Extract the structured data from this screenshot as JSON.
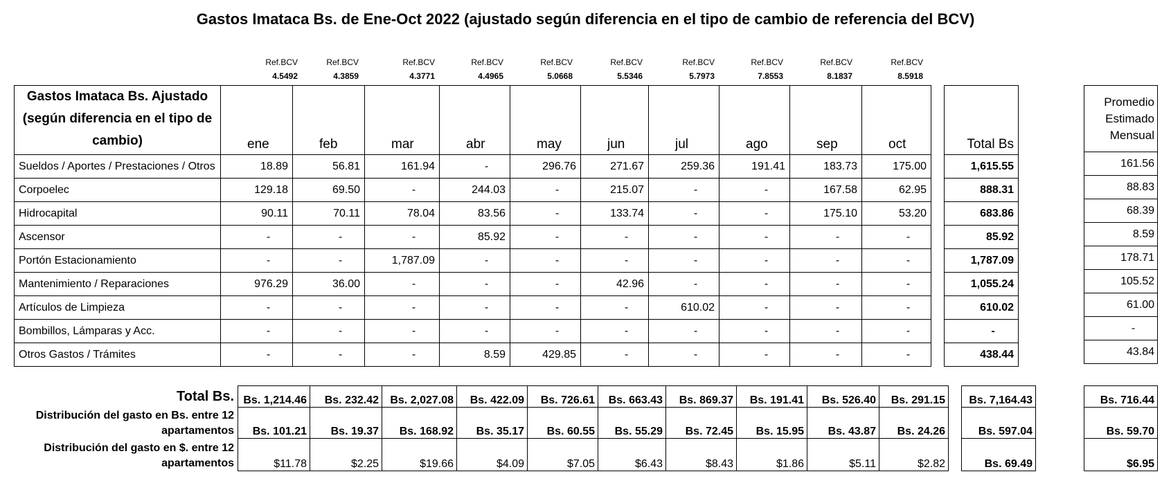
{
  "title": "Gastos Imataca Bs. de Ene-Oct 2022 (ajustado según diferencia en el tipo de cambio de referencia del BCV)",
  "ref_label": "Ref.BCV",
  "ref_values": [
    "4.5492",
    "4.3859",
    "4.3771",
    "4.4965",
    "5.0668",
    "5.5346",
    "5.7973",
    "7.8553",
    "8.1837",
    "8.5918"
  ],
  "table_header": "Gastos Imataca Bs. Ajustado (según diferencia en el tipo de cambio)",
  "months": [
    "ene",
    "feb",
    "mar",
    "abr",
    "may",
    "jun",
    "jul",
    "ago",
    "sep",
    "oct"
  ],
  "total_header": "Total Bs",
  "promedio_header": "Promedio Estimado Mensual",
  "rows": [
    {
      "label": "Sueldos / Aportes / Prestaciones / Otros",
      "values": [
        "18.89",
        "56.81",
        "161.94",
        "-",
        "296.76",
        "271.67",
        "259.36",
        "191.41",
        "183.73",
        "175.00"
      ],
      "total": "1,615.55",
      "promedio": "161.56"
    },
    {
      "label": "Corpoelec",
      "values": [
        "129.18",
        "69.50",
        "-",
        "244.03",
        "-",
        "215.07",
        "-",
        "-",
        "167.58",
        "62.95"
      ],
      "total": "888.31",
      "promedio": "88.83"
    },
    {
      "label": "Hidrocapital",
      "values": [
        "90.11",
        "70.11",
        "78.04",
        "83.56",
        "-",
        "133.74",
        "-",
        "-",
        "175.10",
        "53.20"
      ],
      "total": "683.86",
      "promedio": "68.39"
    },
    {
      "label": "Ascensor",
      "values": [
        "-",
        "-",
        "-",
        "85.92",
        "-",
        "-",
        "-",
        "-",
        "-",
        "-"
      ],
      "total": "85.92",
      "promedio": "8.59"
    },
    {
      "label": "Portón Estacionamiento",
      "values": [
        "-",
        "-",
        "1,787.09",
        "-",
        "-",
        "-",
        "-",
        "-",
        "-",
        "-"
      ],
      "total": "1,787.09",
      "promedio": "178.71"
    },
    {
      "label": "Mantenimiento / Reparaciones",
      "values": [
        "976.29",
        "36.00",
        "-",
        "-",
        "-",
        "42.96",
        "-",
        "-",
        "-",
        "-"
      ],
      "total": "1,055.24",
      "promedio": "105.52"
    },
    {
      "label": "Artículos de Limpieza",
      "values": [
        "-",
        "-",
        "-",
        "-",
        "-",
        "-",
        "610.02",
        "-",
        "-",
        "-"
      ],
      "total": "610.02",
      "promedio": "61.00"
    },
    {
      "label": "Bombillos, Lámparas y Acc.",
      "values": [
        "-",
        "-",
        "-",
        "-",
        "-",
        "-",
        "-",
        "-",
        "-",
        "-"
      ],
      "total": "-",
      "promedio": "-"
    },
    {
      "label": "Otros Gastos / Trámites",
      "values": [
        "-",
        "-",
        "-",
        "8.59",
        "429.85",
        "-",
        "-",
        "-",
        "-",
        "-"
      ],
      "total": "438.44",
      "promedio": "43.84"
    }
  ],
  "summary": {
    "total_label": "Total Bs.",
    "total_values": [
      "Bs. 1,214.46",
      "Bs. 232.42",
      "Bs. 2,027.08",
      "Bs. 422.09",
      "Bs. 726.61",
      "Bs. 663.43",
      "Bs. 869.37",
      "Bs. 191.41",
      "Bs. 526.40",
      "Bs. 291.15"
    ],
    "total_total": "Bs. 7,164.43",
    "total_prom": "Bs. 716.44",
    "dist_bs_label_1": "Distribución del gasto en Bs. entre 12",
    "dist_bs_label_2": "apartamentos",
    "dist_bs_values": [
      "Bs. 101.21",
      "Bs. 19.37",
      "Bs. 168.92",
      "Bs. 35.17",
      "Bs. 60.55",
      "Bs. 55.29",
      "Bs. 72.45",
      "Bs. 15.95",
      "Bs. 43.87",
      "Bs. 24.26"
    ],
    "dist_bs_total": "Bs. 597.04",
    "dist_bs_prom": "Bs. 59.70",
    "dist_usd_label_1": "Distribución del gasto en $. entre 12",
    "dist_usd_label_2": "apartamentos",
    "dist_usd_values": [
      "$11.78",
      "$2.25",
      "$19.66",
      "$4.09",
      "$7.05",
      "$6.43",
      "$8.43",
      "$1.86",
      "$5.11",
      "$2.82"
    ],
    "dist_usd_total": "Bs. 69.49",
    "dist_usd_prom": "$6.95"
  }
}
